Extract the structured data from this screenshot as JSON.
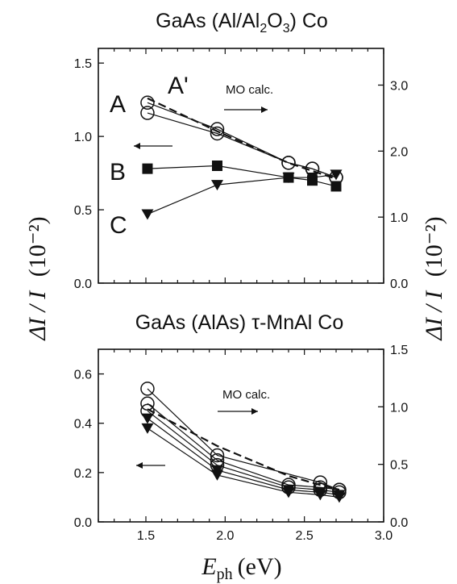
{
  "chart_data": [
    {
      "type": "line",
      "title": "GaAs (Al/Al2O3) Co",
      "xlim": [
        1.2,
        3.0
      ],
      "ylim": [
        0.0,
        1.6
      ],
      "ylim_right": [
        0.0,
        3.556
      ],
      "yticks": [
        0.0,
        0.5,
        1.0,
        1.5
      ],
      "yticks_right": [
        0.0,
        1.0,
        2.0,
        3.0
      ],
      "ytick_labels": [
        "0.0",
        "0.5",
        "1.0",
        "1.5"
      ],
      "ytick_labels_right": [
        "0.0",
        "1.0",
        "2.0",
        "3.0"
      ],
      "series": [
        {
          "name": "A",
          "marker": "circle-open",
          "x": [
            1.51,
            1.95,
            2.4,
            2.55,
            2.7
          ],
          "y": [
            1.23,
            1.05,
            0.82,
            0.78,
            0.72
          ]
        },
        {
          "name": "A'",
          "marker": "circle-open",
          "x": [
            1.51,
            1.95,
            2.4,
            2.55,
            2.7
          ],
          "y": [
            1.16,
            1.02,
            0.82,
            0.78,
            0.72
          ]
        },
        {
          "name": "B",
          "marker": "square-filled",
          "x": [
            1.51,
            1.95,
            2.4,
            2.55,
            2.7
          ],
          "y": [
            0.78,
            0.8,
            0.72,
            0.7,
            0.66
          ]
        },
        {
          "name": "C",
          "marker": "triangle-down-filled",
          "x": [
            1.51,
            1.95,
            2.4,
            2.55,
            2.7
          ],
          "y": [
            0.47,
            0.67,
            0.72,
            0.72,
            0.74
          ]
        },
        {
          "name": "MO calc.",
          "style": "dashed",
          "axis": "right",
          "x": [
            1.51,
            1.95,
            2.4,
            2.55,
            2.7
          ],
          "y": [
            2.8,
            2.3,
            1.82,
            1.7,
            1.58
          ]
        }
      ],
      "annotations": {
        "mo": "MO calc.",
        "A": "A",
        "Aprime": "A'",
        "B": "B",
        "C": "C"
      }
    },
    {
      "type": "line",
      "title": "GaAs (AlAs) τ-MnAl Co",
      "xlim": [
        1.2,
        3.0
      ],
      "ylim": [
        0.0,
        0.7
      ],
      "ylim_right": [
        0.0,
        1.5
      ],
      "yticks": [
        0.0,
        0.2,
        0.4,
        0.6
      ],
      "yticks_right": [
        0.0,
        0.5,
        1.0,
        1.5
      ],
      "ytick_labels": [
        "0.0",
        "0.2",
        "0.4",
        "0.6"
      ],
      "ytick_labels_right": [
        "0.0",
        "0.5",
        "1.0",
        "1.5"
      ],
      "xticks": [
        1.5,
        2.0,
        2.5,
        3.0
      ],
      "xtick_labels": [
        "1.5",
        "2.0",
        "2.5",
        "3.0"
      ],
      "series": [
        {
          "marker": "circle-open",
          "x": [
            1.51,
            1.95,
            2.6,
            2.72
          ],
          "y": [
            0.54,
            0.27,
            0.16,
            0.13
          ]
        },
        {
          "marker": "circle-open",
          "x": [
            1.51,
            1.95,
            2.4,
            2.6,
            2.72
          ],
          "y": [
            0.48,
            0.25,
            0.15,
            0.14,
            0.13
          ]
        },
        {
          "marker": "circle-open",
          "x": [
            1.51,
            1.95,
            2.4,
            2.6,
            2.72
          ],
          "y": [
            0.45,
            0.23,
            0.14,
            0.13,
            0.12
          ]
        },
        {
          "marker": "triangle-down-filled",
          "x": [
            1.51,
            1.95,
            2.4,
            2.6,
            2.72
          ],
          "y": [
            0.42,
            0.21,
            0.13,
            0.12,
            0.11
          ]
        },
        {
          "marker": "triangle-down-filled",
          "x": [
            1.51,
            1.95,
            2.4,
            2.6,
            2.72
          ],
          "y": [
            0.38,
            0.19,
            0.12,
            0.11,
            0.1
          ]
        },
        {
          "name": "MO calc.",
          "style": "dashed",
          "axis": "right",
          "x": [
            1.51,
            1.95,
            2.4,
            2.6,
            2.72
          ],
          "y": [
            0.98,
            0.66,
            0.4,
            0.32,
            0.28
          ]
        }
      ],
      "annotations": {
        "mo": "MO calc."
      }
    }
  ],
  "labels": {
    "ylabel_left": "ΔI / I",
    "ylabel_left_unit": "(10⁻²)",
    "ylabel_right": "ΔI / I",
    "ylabel_right_unit": "(10⁻²)",
    "xlabel_main": "E",
    "xlabel_sub": "ph",
    "xlabel_unit": "(eV)"
  }
}
